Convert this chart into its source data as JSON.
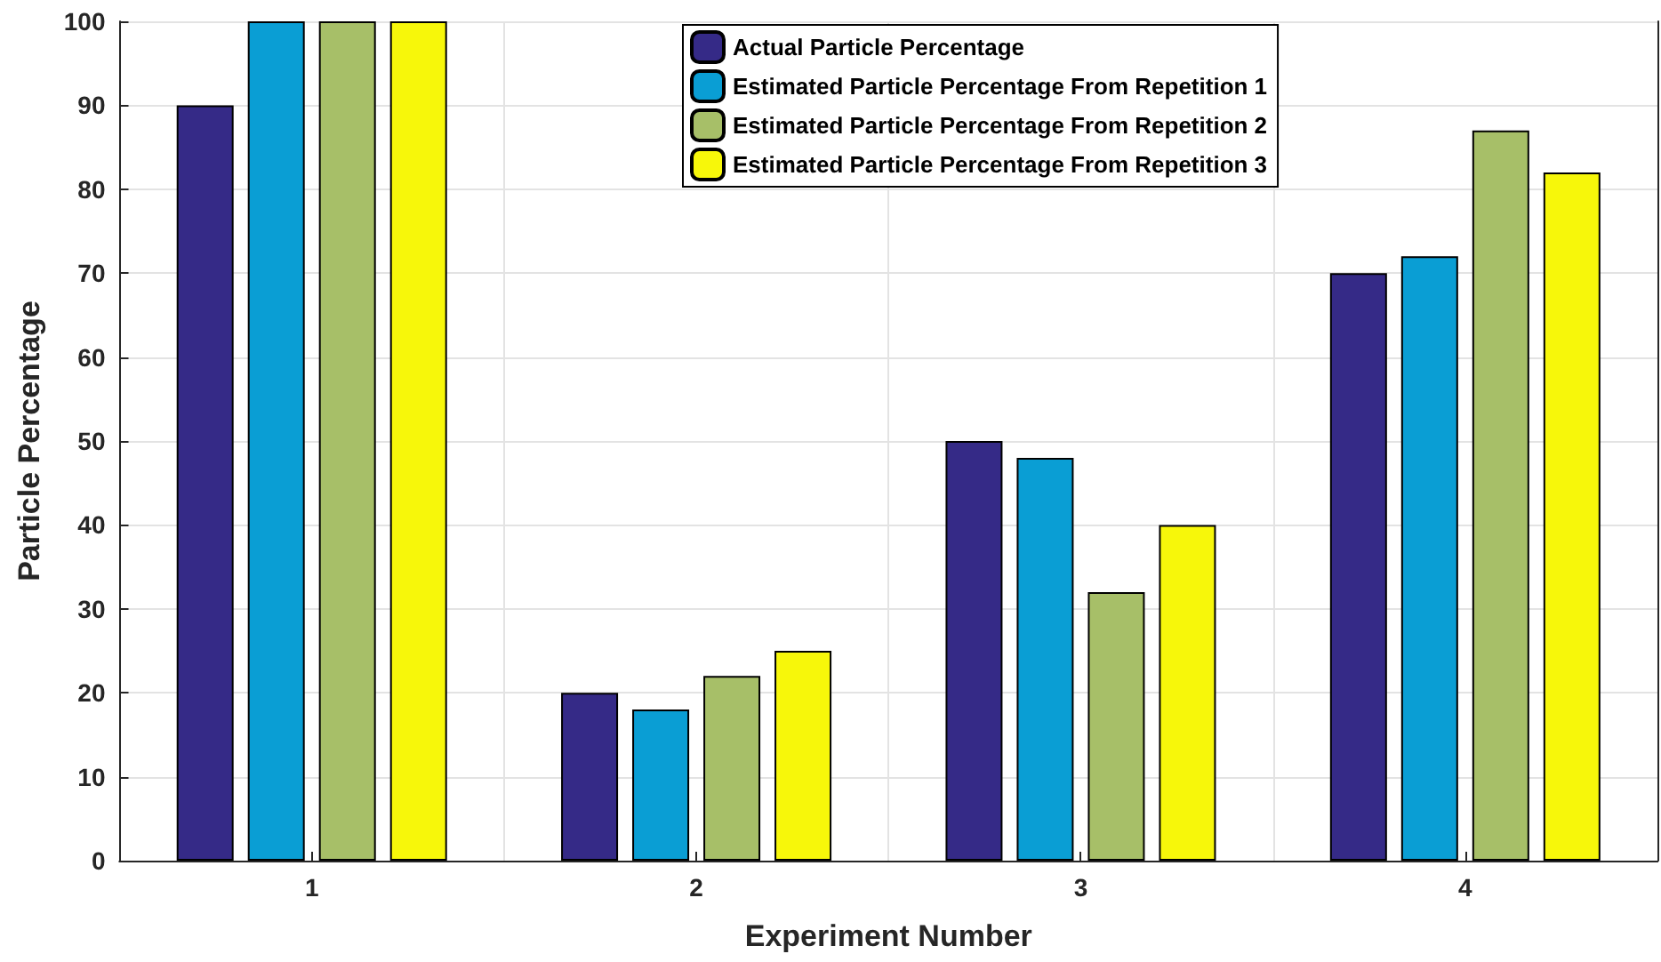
{
  "chart_data": {
    "type": "bar",
    "xlabel": "Experiment Number",
    "ylabel": "Particle Percentage",
    "categories": [
      "1",
      "2",
      "3",
      "4"
    ],
    "series": [
      {
        "name": "Actual Particle Percentage",
        "color": "#352a87",
        "values": [
          90,
          20,
          50,
          70
        ]
      },
      {
        "name": "Estimated Particle Percentage From Repetition 1",
        "color": "#0a9ed4",
        "values": [
          100,
          18,
          48,
          72
        ]
      },
      {
        "name": "Estimated Particle Percentage From Repetition 2",
        "color": "#a7bf68",
        "values": [
          100,
          22,
          32,
          87
        ]
      },
      {
        "name": "Estimated Particle Percentage From Repetition 3",
        "color": "#f7f70a",
        "values": [
          100,
          25,
          40,
          82
        ]
      }
    ],
    "ylim": [
      0,
      100
    ],
    "yticks": [
      0,
      10,
      20,
      30,
      40,
      50,
      60,
      70,
      80,
      90,
      100
    ],
    "grid": true,
    "legend": "top"
  }
}
